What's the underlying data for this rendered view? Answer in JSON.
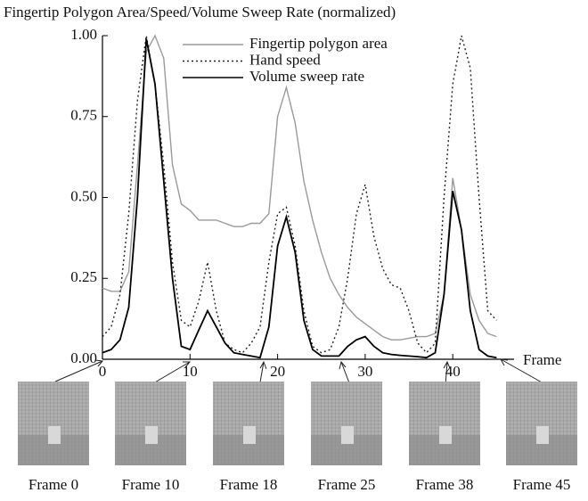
{
  "chart_data": {
    "type": "line",
    "title": "Fingertip Polygon Area/Speed/Volume Sweep Rate (normalized)",
    "x_label": "Frame",
    "x": [
      0,
      1,
      2,
      3,
      4,
      5,
      6,
      7,
      8,
      9,
      10,
      11,
      12,
      13,
      14,
      15,
      16,
      17,
      18,
      19,
      20,
      21,
      22,
      23,
      24,
      25,
      26,
      27,
      28,
      29,
      30,
      31,
      32,
      33,
      34,
      35,
      36,
      37,
      38,
      39,
      40,
      41,
      42,
      43,
      44,
      45
    ],
    "series": [
      {
        "name": "Fingertip polygon area",
        "color": "#9a9a9a",
        "style": "solid",
        "values": [
          0.22,
          0.21,
          0.21,
          0.27,
          0.6,
          0.95,
          1.0,
          0.93,
          0.6,
          0.48,
          0.46,
          0.43,
          0.43,
          0.43,
          0.42,
          0.41,
          0.41,
          0.42,
          0.42,
          0.45,
          0.75,
          0.84,
          0.73,
          0.55,
          0.43,
          0.33,
          0.25,
          0.2,
          0.16,
          0.13,
          0.11,
          0.09,
          0.07,
          0.06,
          0.06,
          0.065,
          0.07,
          0.07,
          0.08,
          0.2,
          0.56,
          0.4,
          0.2,
          0.12,
          0.08,
          0.07
        ]
      },
      {
        "name": "Hand speed",
        "color": "#222222",
        "style": "dotted",
        "values": [
          0.07,
          0.1,
          0.2,
          0.45,
          0.8,
          1.0,
          0.85,
          0.6,
          0.3,
          0.12,
          0.1,
          0.18,
          0.3,
          0.15,
          0.05,
          0.03,
          0.02,
          0.05,
          0.1,
          0.3,
          0.45,
          0.47,
          0.35,
          0.15,
          0.04,
          0.02,
          0.03,
          0.1,
          0.25,
          0.45,
          0.54,
          0.38,
          0.28,
          0.23,
          0.22,
          0.15,
          0.05,
          0.02,
          0.05,
          0.5,
          0.85,
          1.0,
          0.9,
          0.5,
          0.15,
          0.12
        ]
      },
      {
        "name": "Volume sweep rate",
        "color": "#000000",
        "style": "solid",
        "values": [
          0.02,
          0.03,
          0.06,
          0.16,
          0.5,
          0.99,
          0.85,
          0.55,
          0.25,
          0.04,
          0.03,
          0.09,
          0.15,
          0.1,
          0.05,
          0.02,
          0.015,
          0.01,
          0.005,
          0.1,
          0.35,
          0.44,
          0.33,
          0.12,
          0.03,
          0.01,
          0.01,
          0.01,
          0.04,
          0.06,
          0.07,
          0.04,
          0.02,
          0.015,
          0.012,
          0.01,
          0.008,
          0.005,
          0.02,
          0.2,
          0.52,
          0.4,
          0.15,
          0.03,
          0.01,
          0.005
        ]
      }
    ],
    "xlim": [
      0,
      47
    ],
    "xticks": [
      0,
      10,
      20,
      30,
      40
    ],
    "ylim": [
      0,
      1
    ],
    "yticks": [
      {
        "value": 0,
        "label": "0.00"
      },
      {
        "value": 0.25,
        "label": "0.25"
      },
      {
        "value": 0.5,
        "label": "0.50"
      },
      {
        "value": 0.75,
        "label": "0.75"
      },
      {
        "value": 1,
        "label": "1.00"
      }
    ],
    "legend": "top-center"
  },
  "thumbnails": {
    "labels": [
      "Frame 0",
      "Frame 10",
      "Frame 18",
      "Frame 25",
      "Frame 38",
      "Frame 45"
    ]
  }
}
